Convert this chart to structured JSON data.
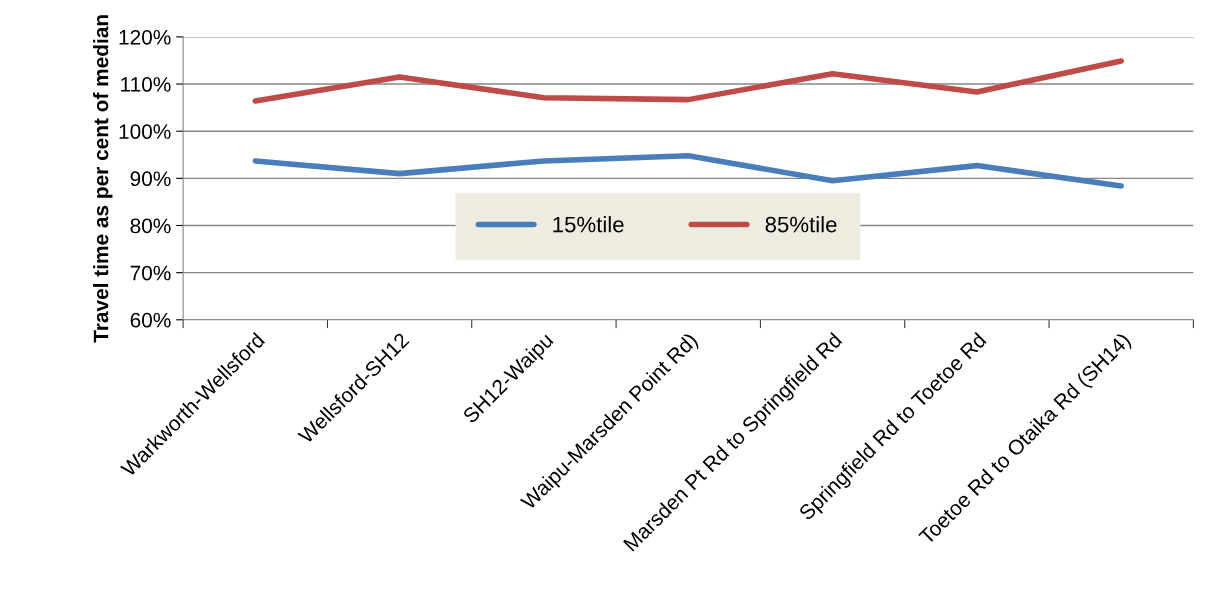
{
  "chart_data": {
    "type": "line",
    "ylabel": "Travel time as per cent of median",
    "categories": [
      "Warkworth-Wellsford",
      "Wellsford-SH12",
      "SH12-Waipu",
      "Waipu-Marsden Point Rd)",
      "Marsden Pt Rd to Springfield Rd",
      "Springfield Rd to Toetoe Rd",
      "Toetoe Rd to Otaika Rd (SH14)"
    ],
    "series": [
      {
        "name": "15%tile",
        "color": "#4a7ebb",
        "values": [
          93.7,
          91.0,
          93.7,
          94.8,
          89.5,
          92.7,
          88.4
        ]
      },
      {
        "name": "85%tile",
        "color": "#be4b48",
        "values": [
          106.4,
          111.5,
          107.1,
          106.7,
          112.2,
          108.3,
          114.9
        ]
      }
    ],
    "ylim": [
      60,
      120
    ],
    "yticks": [
      {
        "value": 60,
        "label": "60%"
      },
      {
        "value": 70,
        "label": "70%"
      },
      {
        "value": 80,
        "label": "80%"
      },
      {
        "value": 90,
        "label": "90%"
      },
      {
        "value": 100,
        "label": "100%"
      },
      {
        "value": 110,
        "label": "110%"
      },
      {
        "value": 120,
        "label": "120%"
      }
    ],
    "grid": "y",
    "legend": "center",
    "marker": "none",
    "line_style": "solid"
  }
}
